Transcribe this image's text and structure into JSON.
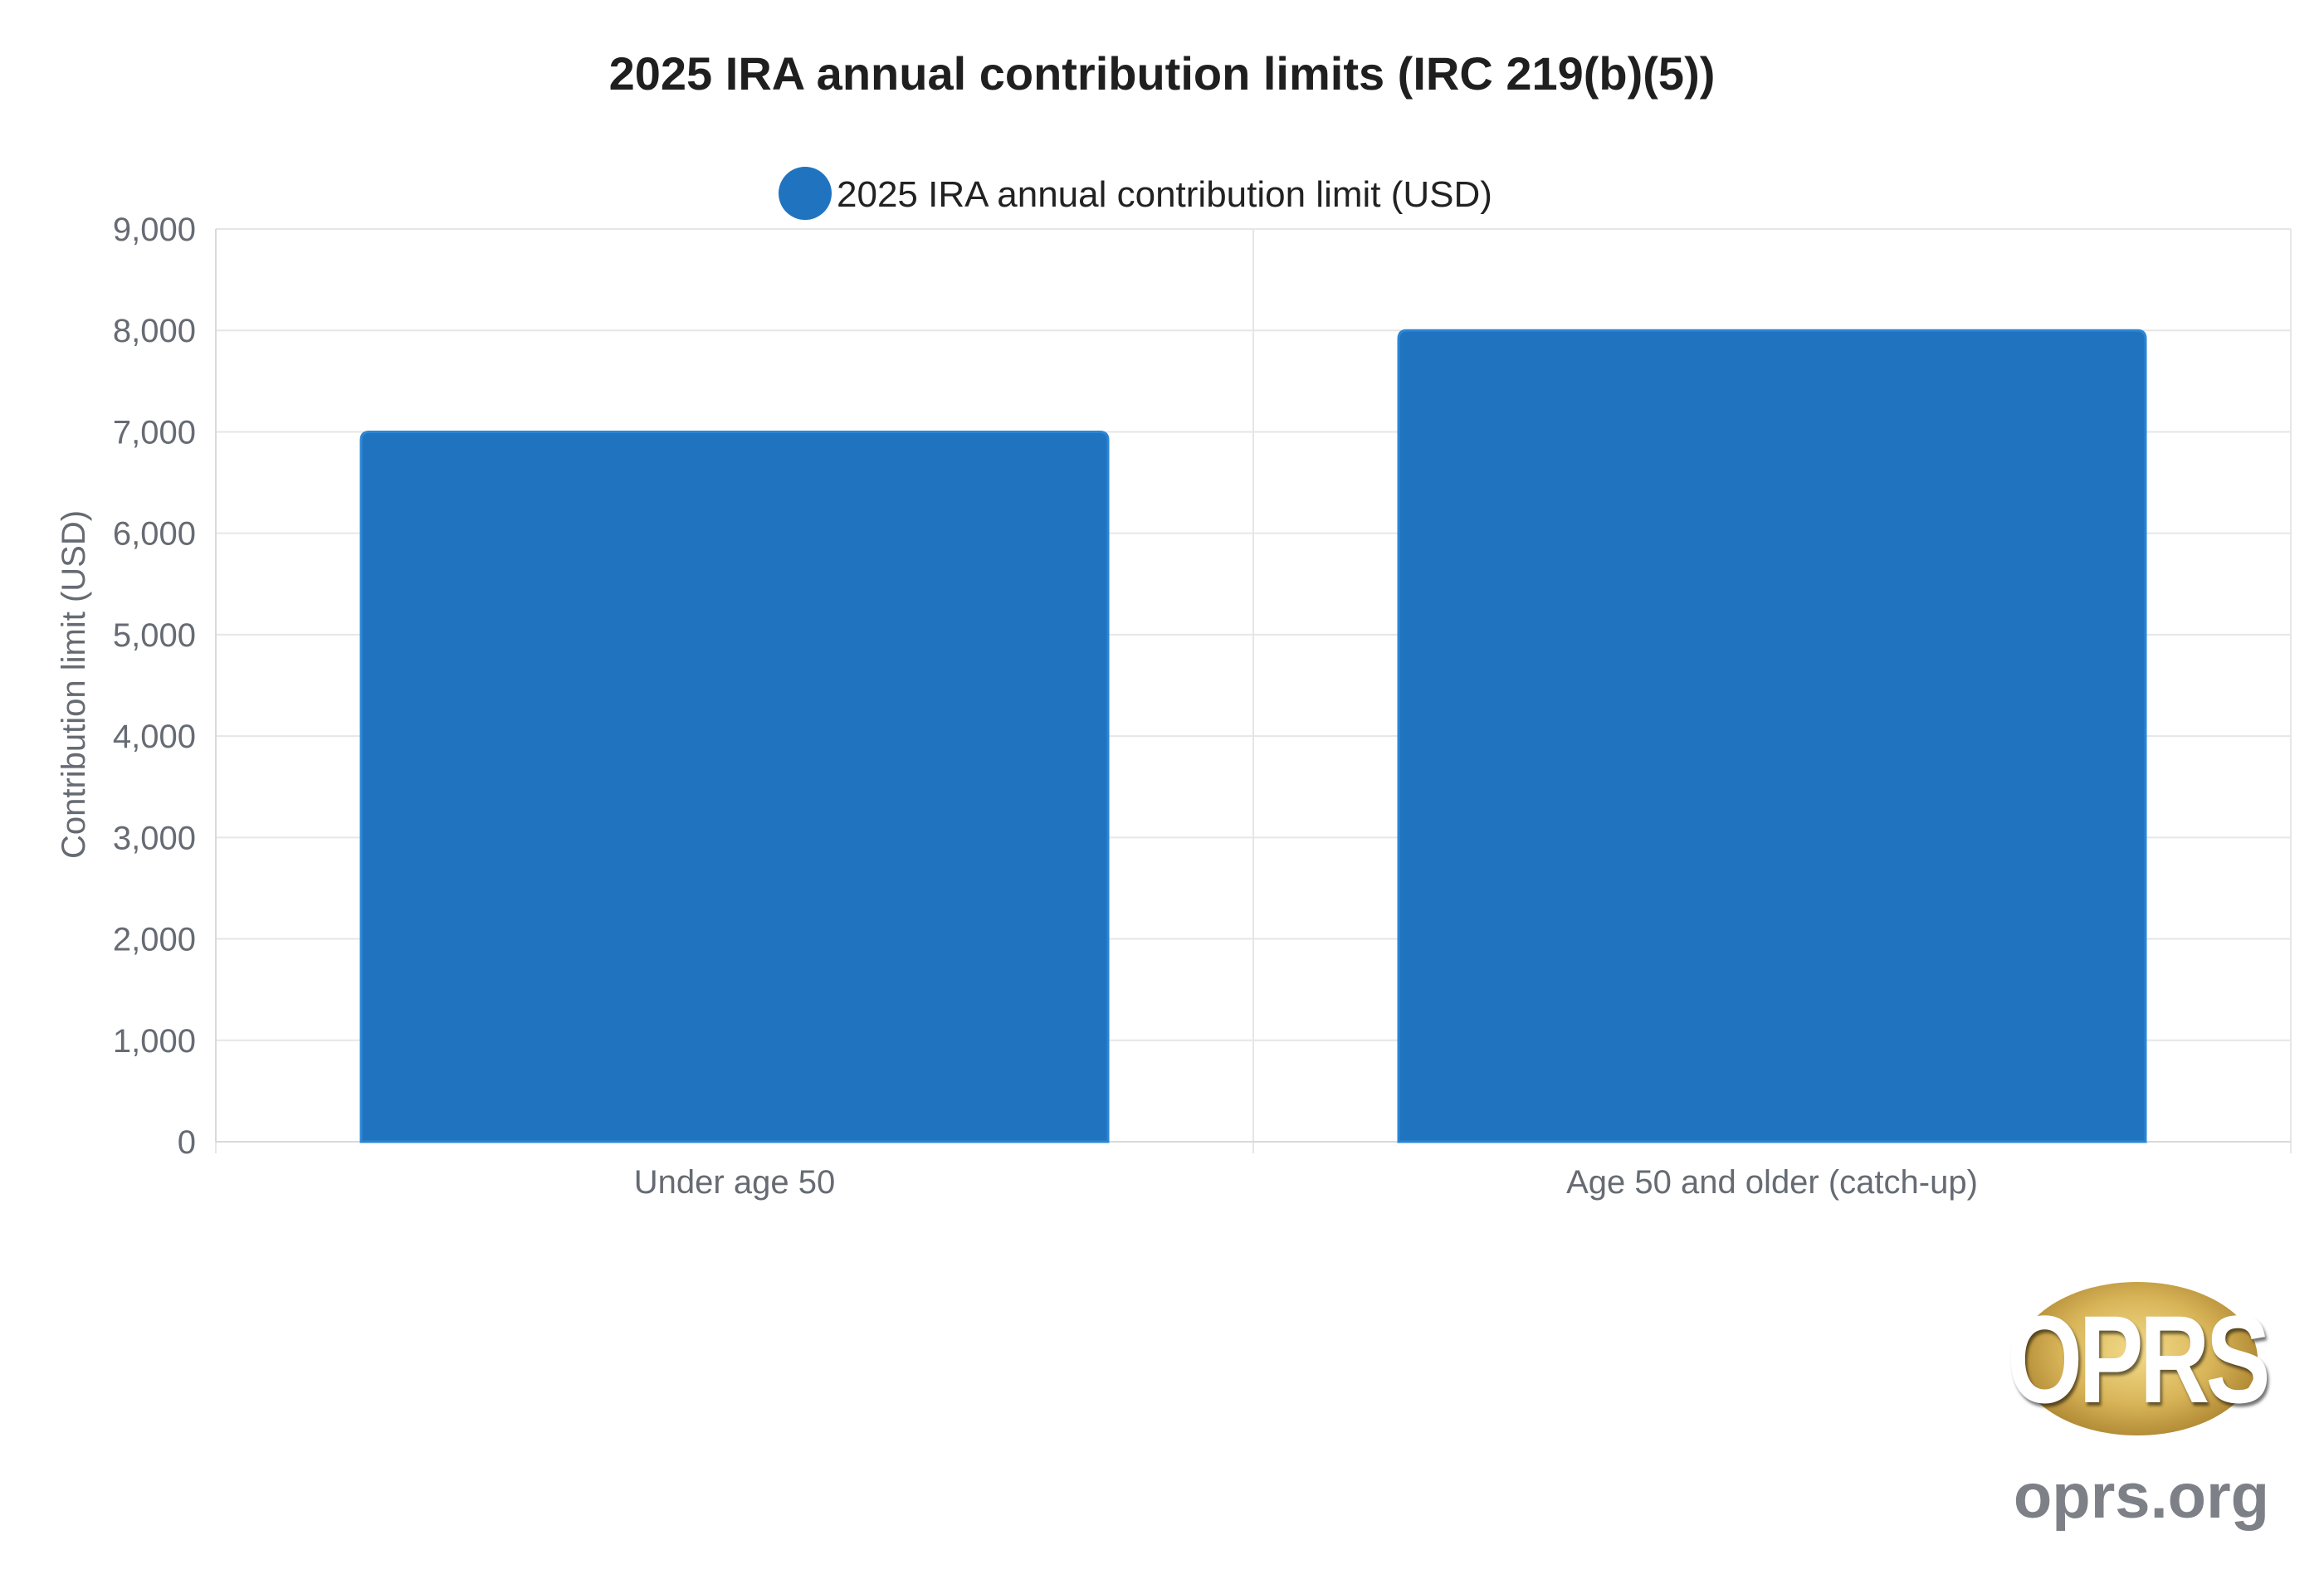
{
  "chart_data": {
    "type": "bar",
    "title": "2025 IRA annual contribution limits (IRC 219(b)(5))",
    "categories": [
      "Under age 50",
      "Age 50 and older (catch-up)"
    ],
    "series": [
      {
        "name": "2025 IRA annual contribution limit (USD)",
        "values": [
          7000,
          8000
        ],
        "color": "#2074bf"
      }
    ],
    "xlabel": "",
    "ylabel": "Contribution limit (USD)",
    "ylim": [
      0,
      9000
    ],
    "yticks": [
      "0",
      "1,000",
      "2,000",
      "3,000",
      "4,000",
      "5,000",
      "6,000",
      "7,000",
      "8,000",
      "9,000"
    ],
    "grid": true,
    "legend_position": "top-center"
  },
  "branding": {
    "logo_text": "OPRS",
    "url_text": "oprs.org"
  }
}
